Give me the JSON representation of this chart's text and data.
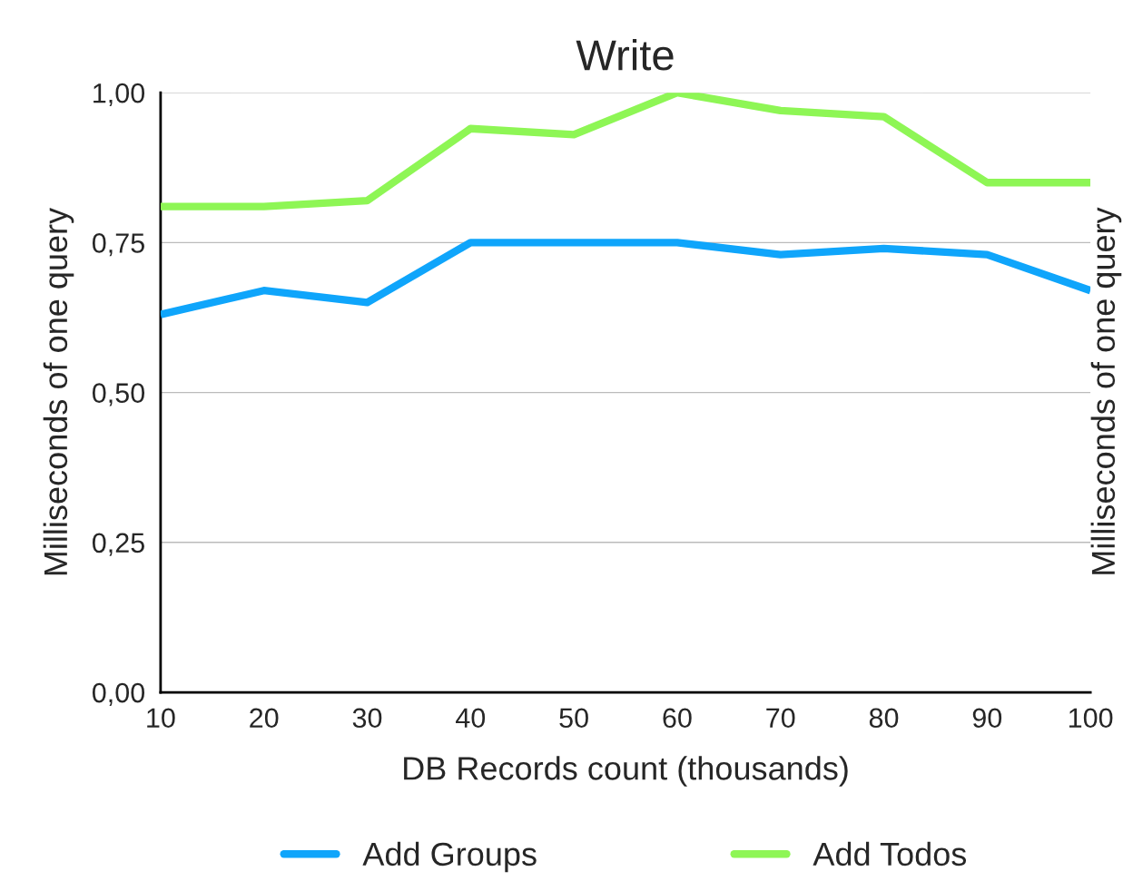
{
  "chart_data": {
    "type": "line",
    "title": "Write",
    "xlabel": "DB Records count (thousands)",
    "ylabel": "Milliseconds of one query",
    "y2label": "Milliseconds of one query",
    "x": [
      10,
      20,
      30,
      40,
      50,
      60,
      70,
      80,
      90,
      100
    ],
    "series": [
      {
        "name": "Add Groups",
        "color": "#0fa5fb",
        "values": [
          0.63,
          0.67,
          0.65,
          0.75,
          0.75,
          0.75,
          0.73,
          0.74,
          0.73,
          0.67
        ]
      },
      {
        "name": "Add Todos",
        "color": "#8ef655",
        "values": [
          0.81,
          0.81,
          0.82,
          0.94,
          0.93,
          1.0,
          0.97,
          0.96,
          0.85,
          0.85
        ]
      }
    ],
    "xlim": [
      10,
      100
    ],
    "xticks": [
      10,
      20,
      30,
      40,
      50,
      60,
      70,
      80,
      90,
      100
    ],
    "ylim": [
      0,
      1
    ],
    "yticks": [
      {
        "value": 0,
        "label": "0,00"
      },
      {
        "value": 0.25,
        "label": "0,25"
      },
      {
        "value": 0.5,
        "label": "0,50"
      },
      {
        "value": 0.75,
        "label": "0,75"
      },
      {
        "value": 1,
        "label": "1,00"
      }
    ],
    "grid": "y",
    "legend": "bottom",
    "marker": "none",
    "line_style": "solid"
  }
}
